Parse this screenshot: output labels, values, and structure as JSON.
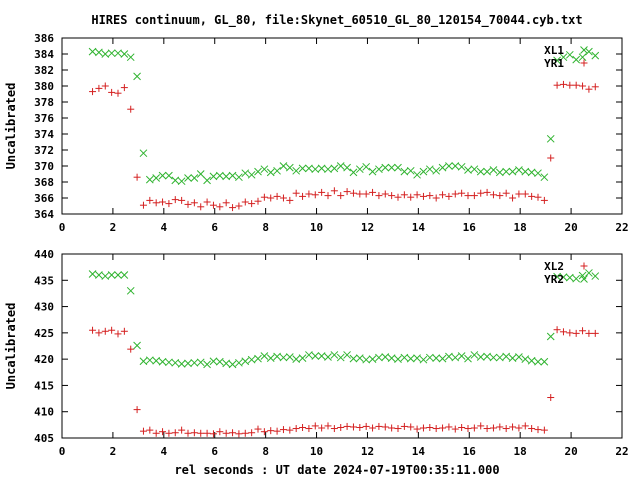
{
  "figure": {
    "title": "HIRES continuum, GL_80, file:Skynet_60510_GL_80_120154_70044.cyb.txt",
    "xlabel": "rel seconds : UT date 2024-07-19T00:35:11.000"
  },
  "chart_data": [
    {
      "type": "scatter",
      "ylabel": "Uncalibrated",
      "xlim": [
        0,
        22
      ],
      "ylim": [
        364,
        386
      ],
      "xticks": [
        0,
        2,
        4,
        6,
        8,
        10,
        12,
        14,
        16,
        18,
        20,
        22
      ],
      "yticks": [
        364,
        366,
        368,
        370,
        372,
        374,
        376,
        378,
        380,
        382,
        384,
        386
      ],
      "grid": false,
      "legend_position": "top-right",
      "series": [
        {
          "name": "XL1",
          "marker": "x",
          "color": "#2fb32f",
          "x": [
            1.2,
            1.45,
            1.7,
            1.95,
            2.2,
            2.45,
            2.7,
            2.95,
            3.2,
            3.45,
            3.7,
            3.95,
            4.2,
            4.45,
            4.7,
            4.95,
            5.2,
            5.45,
            5.7,
            5.95,
            6.2,
            6.45,
            6.7,
            6.95,
            7.2,
            7.45,
            7.7,
            7.95,
            8.2,
            8.45,
            8.7,
            8.95,
            9.2,
            9.45,
            9.7,
            9.95,
            10.2,
            10.45,
            10.7,
            10.95,
            11.2,
            11.45,
            11.7,
            11.95,
            12.2,
            12.45,
            12.7,
            12.95,
            13.2,
            13.45,
            13.7,
            13.95,
            14.2,
            14.45,
            14.7,
            14.95,
            15.2,
            15.45,
            15.7,
            15.95,
            16.2,
            16.45,
            16.7,
            16.95,
            17.2,
            17.45,
            17.7,
            17.95,
            18.2,
            18.45,
            18.7,
            18.95,
            19.2,
            19.45,
            19.7,
            19.95,
            20.2,
            20.45,
            20.7,
            20.95
          ],
          "y": [
            384.3,
            384.2,
            384.0,
            384.1,
            384.1,
            384.0,
            383.6,
            381.2,
            371.6,
            368.3,
            368.5,
            368.8,
            368.8,
            368.2,
            368.1,
            368.5,
            368.5,
            369.0,
            368.2,
            368.7,
            368.8,
            368.7,
            368.8,
            368.6,
            369.1,
            368.9,
            369.3,
            369.6,
            369.2,
            369.4,
            370.0,
            369.8,
            369.4,
            369.7,
            369.7,
            369.6,
            369.7,
            369.6,
            369.7,
            370.0,
            369.8,
            369.2,
            369.6,
            369.9,
            369.3,
            369.6,
            369.8,
            369.8,
            369.8,
            369.3,
            369.4,
            368.9,
            369.3,
            369.6,
            369.4,
            369.8,
            370.0,
            370.0,
            369.9,
            369.5,
            369.6,
            369.3,
            369.3,
            369.5,
            369.2,
            369.3,
            369.3,
            369.5,
            369.3,
            369.2,
            369.1,
            368.6,
            373.4,
            383.2,
            383.6,
            383.9,
            383.3,
            383.6,
            384.3,
            383.8
          ]
        },
        {
          "name": "YR1",
          "marker": "+",
          "color": "#d42020",
          "x": [
            1.2,
            1.45,
            1.7,
            1.95,
            2.2,
            2.45,
            2.7,
            2.95,
            3.2,
            3.45,
            3.7,
            3.95,
            4.2,
            4.45,
            4.7,
            4.95,
            5.2,
            5.45,
            5.7,
            5.95,
            6.2,
            6.45,
            6.7,
            6.95,
            7.2,
            7.45,
            7.7,
            7.95,
            8.2,
            8.45,
            8.7,
            8.95,
            9.2,
            9.45,
            9.7,
            9.95,
            10.2,
            10.45,
            10.7,
            10.95,
            11.2,
            11.45,
            11.7,
            11.95,
            12.2,
            12.45,
            12.7,
            12.95,
            13.2,
            13.45,
            13.7,
            13.95,
            14.2,
            14.45,
            14.7,
            14.95,
            15.2,
            15.45,
            15.7,
            15.95,
            16.2,
            16.45,
            16.7,
            16.95,
            17.2,
            17.45,
            17.7,
            17.95,
            18.2,
            18.45,
            18.7,
            18.95,
            19.2,
            19.45,
            19.7,
            19.95,
            20.2,
            20.45,
            20.7,
            20.95
          ],
          "y": [
            379.3,
            379.7,
            380.0,
            379.2,
            379.1,
            379.8,
            377.1,
            368.6,
            365.1,
            365.7,
            365.4,
            365.5,
            365.3,
            365.8,
            365.7,
            365.2,
            365.4,
            364.9,
            365.5,
            365.1,
            364.9,
            365.4,
            364.8,
            365.0,
            365.5,
            365.3,
            365.6,
            366.1,
            366.0,
            366.2,
            366.0,
            365.7,
            366.6,
            366.2,
            366.5,
            366.4,
            366.7,
            366.3,
            366.9,
            366.3,
            366.8,
            366.6,
            366.5,
            366.5,
            366.7,
            366.3,
            366.5,
            366.3,
            366.1,
            366.4,
            366.1,
            366.4,
            366.2,
            366.3,
            366.0,
            366.4,
            366.2,
            366.5,
            366.6,
            366.3,
            366.3,
            366.6,
            366.7,
            366.4,
            366.3,
            366.6,
            366.0,
            366.5,
            366.5,
            366.2,
            366.1,
            365.7,
            371.0,
            380.1,
            380.2,
            380.1,
            380.1,
            380.0,
            379.6,
            379.9
          ]
        }
      ]
    },
    {
      "type": "scatter",
      "ylabel": "Uncalibrated",
      "xlim": [
        0,
        22
      ],
      "ylim": [
        405,
        440
      ],
      "xticks": [
        0,
        2,
        4,
        6,
        8,
        10,
        12,
        14,
        16,
        18,
        20,
        22
      ],
      "yticks": [
        405,
        410,
        415,
        420,
        425,
        430,
        435,
        440
      ],
      "grid": false,
      "legend_position": "top-right",
      "series": [
        {
          "name": "XL2",
          "marker": "+",
          "color": "#d42020",
          "x": [
            1.2,
            1.45,
            1.7,
            1.95,
            2.2,
            2.45,
            2.7,
            2.95,
            3.2,
            3.45,
            3.7,
            3.95,
            4.2,
            4.45,
            4.7,
            4.95,
            5.2,
            5.45,
            5.7,
            5.95,
            6.2,
            6.45,
            6.7,
            6.95,
            7.2,
            7.45,
            7.7,
            7.95,
            8.2,
            8.45,
            8.7,
            8.95,
            9.2,
            9.45,
            9.7,
            9.95,
            10.2,
            10.45,
            10.7,
            10.95,
            11.2,
            11.45,
            11.7,
            11.95,
            12.2,
            12.45,
            12.7,
            12.95,
            13.2,
            13.45,
            13.7,
            13.95,
            14.2,
            14.45,
            14.7,
            14.95,
            15.2,
            15.45,
            15.7,
            15.95,
            16.2,
            16.45,
            16.7,
            16.95,
            17.2,
            17.45,
            17.7,
            17.95,
            18.2,
            18.45,
            18.7,
            18.95,
            19.2,
            19.45,
            19.7,
            19.95,
            20.2,
            20.45,
            20.7,
            20.95
          ],
          "y": [
            425.5,
            425.0,
            425.3,
            425.5,
            424.8,
            425.3,
            421.9,
            410.4,
            406.3,
            406.5,
            405.9,
            406.2,
            405.9,
            406.0,
            406.5,
            405.9,
            406.0,
            405.9,
            405.9,
            405.8,
            406.2,
            405.9,
            406.0,
            405.8,
            405.9,
            406.0,
            406.7,
            406.2,
            406.4,
            406.3,
            406.6,
            406.5,
            406.8,
            407.0,
            406.8,
            407.3,
            406.9,
            407.3,
            406.8,
            407.0,
            407.2,
            407.1,
            407.0,
            407.2,
            406.9,
            407.2,
            407.1,
            406.9,
            406.8,
            407.2,
            407.1,
            406.7,
            406.9,
            407.0,
            406.8,
            406.9,
            407.1,
            406.7,
            407.0,
            406.8,
            406.9,
            407.3,
            406.8,
            406.9,
            407.1,
            406.8,
            407.1,
            406.9,
            407.3,
            406.8,
            406.6,
            406.5,
            412.7,
            425.6,
            425.2,
            425.0,
            424.9,
            425.4,
            424.9,
            424.9
          ]
        },
        {
          "name": "YR2",
          "marker": "x",
          "color": "#2fb32f",
          "x": [
            1.2,
            1.45,
            1.7,
            1.95,
            2.2,
            2.45,
            2.7,
            2.95,
            3.2,
            3.45,
            3.7,
            3.95,
            4.2,
            4.45,
            4.7,
            4.95,
            5.2,
            5.45,
            5.7,
            5.95,
            6.2,
            6.45,
            6.7,
            6.95,
            7.2,
            7.45,
            7.7,
            7.95,
            8.2,
            8.45,
            8.7,
            8.95,
            9.2,
            9.45,
            9.7,
            9.95,
            10.2,
            10.45,
            10.7,
            10.95,
            11.2,
            11.45,
            11.7,
            11.95,
            12.2,
            12.45,
            12.7,
            12.95,
            13.2,
            13.45,
            13.7,
            13.95,
            14.2,
            14.45,
            14.7,
            14.95,
            15.2,
            15.45,
            15.7,
            15.95,
            16.2,
            16.45,
            16.7,
            16.95,
            17.2,
            17.45,
            17.7,
            17.95,
            18.2,
            18.45,
            18.7,
            18.95,
            19.2,
            19.45,
            19.7,
            19.95,
            20.2,
            20.45,
            20.7,
            20.95
          ],
          "y": [
            436.2,
            436.0,
            435.8,
            436.0,
            436.0,
            436.0,
            433.0,
            422.6,
            419.6,
            419.8,
            419.7,
            419.5,
            419.4,
            419.3,
            419.1,
            419.2,
            419.3,
            419.4,
            419.0,
            419.6,
            419.5,
            419.2,
            419.0,
            419.3,
            419.6,
            419.9,
            420.1,
            420.6,
            420.2,
            420.5,
            420.3,
            420.4,
            420.0,
            420.2,
            420.8,
            420.6,
            420.6,
            420.4,
            420.8,
            420.3,
            420.8,
            420.1,
            420.2,
            419.9,
            420.0,
            420.3,
            420.4,
            420.2,
            420.0,
            420.3,
            420.1,
            420.2,
            419.9,
            420.3,
            420.2,
            420.1,
            420.5,
            420.3,
            420.6,
            420.1,
            420.8,
            420.4,
            420.5,
            420.3,
            420.3,
            420.5,
            420.2,
            420.4,
            420.0,
            419.7,
            419.5,
            419.5,
            424.3,
            435.7,
            435.6,
            435.5,
            435.3,
            435.9,
            436.4,
            435.8
          ]
        }
      ]
    }
  ]
}
